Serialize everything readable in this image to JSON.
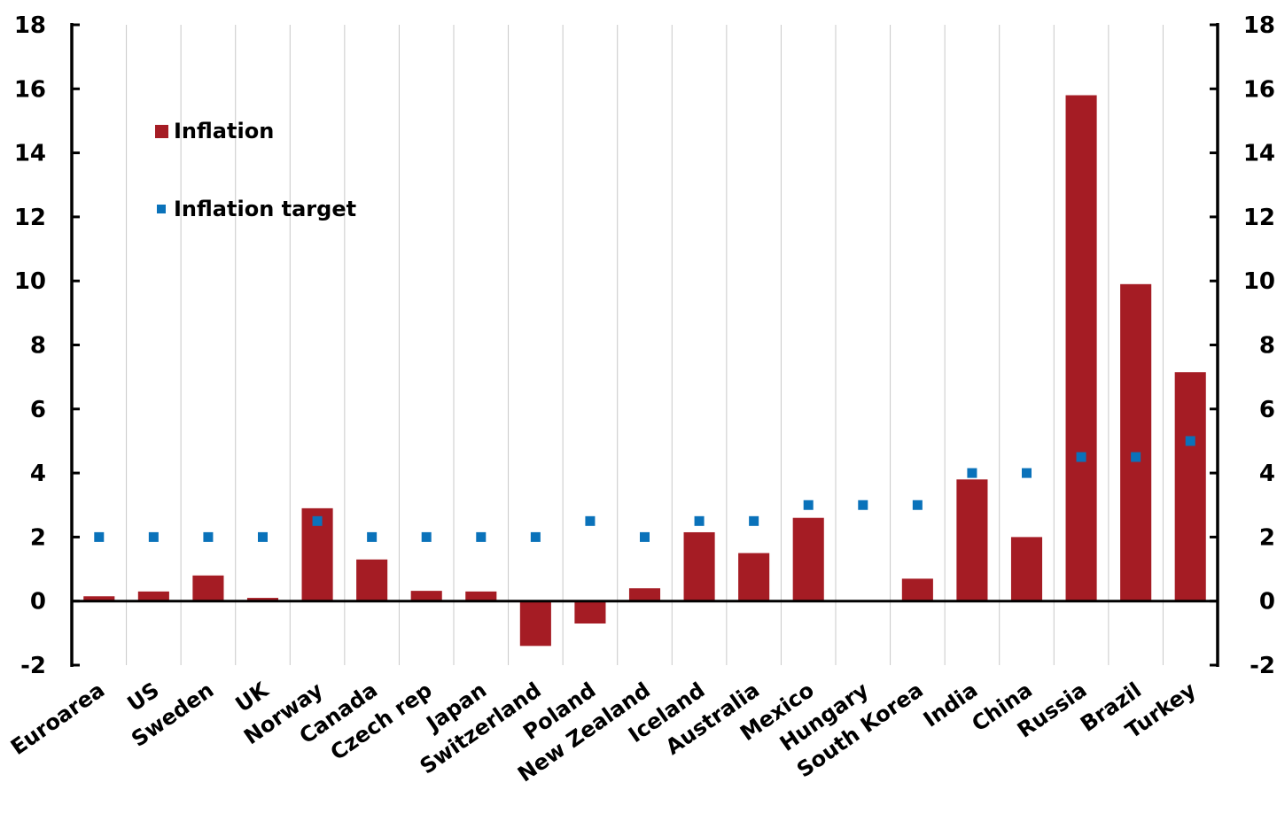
{
  "colors": {
    "inflation": "#A51C24",
    "target": "#0A72BA",
    "grid": "#C8C8C8",
    "axis": "#000000"
  },
  "legend": {
    "inflation_label": "Inflation",
    "target_label": "Inflation target"
  },
  "chart_data": {
    "type": "bar",
    "categories": [
      "Euroarea",
      "US",
      "Sweden",
      "UK",
      "Norway",
      "Canada",
      "Czech rep",
      "Japan",
      "Switzerland",
      "Poland",
      "New Zealand",
      "Iceland",
      "Australia",
      "Mexico",
      "Hungary",
      "South Korea",
      "India",
      "China",
      "Russia",
      "Brazil",
      "Turkey"
    ],
    "series": [
      {
        "name": "Inflation",
        "kind": "bar",
        "values": [
          0.15,
          0.3,
          0.8,
          0.1,
          2.9,
          1.3,
          0.32,
          0.3,
          -1.4,
          -0.7,
          0.4,
          2.15,
          1.5,
          2.6,
          0.0,
          0.7,
          3.8,
          2.0,
          15.8,
          9.9,
          7.15
        ]
      },
      {
        "name": "Inflation target",
        "kind": "marker",
        "values": [
          2,
          2,
          2,
          2,
          2.5,
          2,
          2,
          2,
          2,
          2.5,
          2,
          2.5,
          2.5,
          3,
          3,
          3,
          4,
          4,
          4.5,
          4.5,
          5
        ]
      }
    ],
    "ylim": [
      -2,
      18
    ],
    "yticks": [
      -2,
      0,
      2,
      4,
      6,
      8,
      10,
      12,
      14,
      16,
      18
    ],
    "ytick_labels": [
      "-2",
      "0",
      "2",
      "4",
      "6",
      "8",
      "10",
      "12",
      "14",
      "16",
      "18"
    ],
    "secondary_axis": true,
    "grid": "vertical",
    "legend_position": "top-left",
    "title": "",
    "xlabel": "",
    "ylabel": ""
  }
}
